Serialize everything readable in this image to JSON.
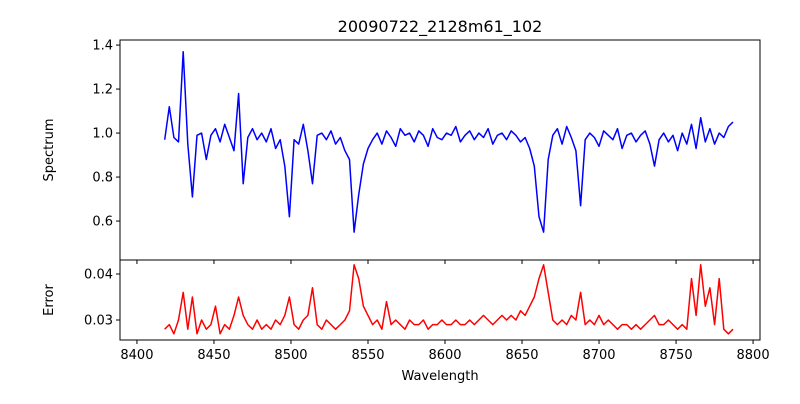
{
  "chart_data": [
    {
      "type": "line",
      "title": "20090722_2128m61_102",
      "xlabel": "",
      "ylabel": "Spectrum",
      "xlim": [
        8389,
        8804.5
      ],
      "ylim": [
        0.423,
        1.423
      ],
      "xticks": [
        8400,
        8450,
        8500,
        8550,
        8600,
        8650,
        8700,
        8750,
        8800
      ],
      "yticks": [
        "0.6",
        "0.8",
        "1.0",
        "1.2",
        "1.4"
      ],
      "grid": false,
      "color": "#0000ff",
      "x_start": 8418,
      "x_step": 3,
      "values": [
        0.97,
        1.12,
        0.98,
        0.96,
        1.37,
        0.95,
        0.71,
        0.99,
        1.0,
        0.88,
        0.99,
        1.02,
        0.96,
        1.04,
        0.98,
        0.92,
        1.18,
        0.77,
        0.98,
        1.02,
        0.97,
        1.0,
        0.96,
        1.02,
        0.93,
        0.97,
        0.85,
        0.62,
        0.97,
        0.95,
        1.04,
        0.92,
        0.77,
        0.99,
        1.0,
        0.97,
        1.01,
        0.95,
        0.98,
        0.92,
        0.88,
        0.55,
        0.72,
        0.86,
        0.93,
        0.97,
        1.0,
        0.95,
        1.01,
        0.98,
        0.94,
        1.02,
        0.99,
        1.0,
        0.96,
        1.01,
        0.99,
        0.94,
        1.02,
        0.98,
        0.97,
        1.0,
        0.99,
        1.03,
        0.96,
        0.99,
        1.01,
        0.97,
        1.0,
        0.98,
        1.02,
        0.95,
        0.99,
        1.0,
        0.97,
        1.01,
        0.99,
        0.96,
        0.98,
        0.93,
        0.85,
        0.62,
        0.55,
        0.88,
        0.99,
        1.02,
        0.95,
        1.03,
        0.98,
        0.92,
        0.67,
        0.97,
        1.0,
        0.98,
        0.94,
        1.01,
        0.99,
        0.97,
        1.02,
        0.93,
        0.99,
        1.0,
        0.96,
        0.99,
        1.01,
        0.95,
        0.85,
        0.97,
        1.0,
        0.96,
        0.99,
        0.92,
        1.0,
        0.95,
        1.04,
        0.93,
        1.07,
        0.96,
        1.02,
        0.95,
        1.0,
        0.98,
        1.03,
        1.05
      ]
    },
    {
      "type": "line",
      "title": "",
      "xlabel": "Wavelength",
      "ylabel": "Error",
      "xlim": [
        8389,
        8804.5
      ],
      "ylim": [
        0.02565,
        0.04304
      ],
      "xticks": [
        "8400",
        "8450",
        "8500",
        "8550",
        "8600",
        "8650",
        "8700",
        "8750",
        "8800"
      ],
      "yticks": [
        "0.03",
        "0.04"
      ],
      "grid": false,
      "color": "#ff0000",
      "x_start": 8418,
      "x_step": 3,
      "values": [
        0.028,
        0.029,
        0.027,
        0.03,
        0.036,
        0.028,
        0.035,
        0.027,
        0.03,
        0.028,
        0.029,
        0.033,
        0.027,
        0.029,
        0.028,
        0.031,
        0.035,
        0.031,
        0.029,
        0.028,
        0.03,
        0.028,
        0.029,
        0.028,
        0.03,
        0.029,
        0.031,
        0.035,
        0.029,
        0.028,
        0.03,
        0.031,
        0.037,
        0.029,
        0.028,
        0.03,
        0.029,
        0.028,
        0.029,
        0.03,
        0.032,
        0.042,
        0.039,
        0.033,
        0.031,
        0.029,
        0.03,
        0.028,
        0.034,
        0.029,
        0.03,
        0.029,
        0.028,
        0.03,
        0.029,
        0.029,
        0.03,
        0.028,
        0.029,
        0.029,
        0.03,
        0.029,
        0.029,
        0.03,
        0.029,
        0.029,
        0.03,
        0.029,
        0.03,
        0.031,
        0.03,
        0.029,
        0.03,
        0.031,
        0.03,
        0.031,
        0.03,
        0.032,
        0.031,
        0.033,
        0.035,
        0.039,
        0.042,
        0.036,
        0.03,
        0.029,
        0.03,
        0.029,
        0.031,
        0.03,
        0.036,
        0.029,
        0.03,
        0.029,
        0.031,
        0.029,
        0.03,
        0.029,
        0.028,
        0.029,
        0.029,
        0.028,
        0.029,
        0.028,
        0.029,
        0.03,
        0.031,
        0.029,
        0.029,
        0.03,
        0.029,
        0.028,
        0.029,
        0.028,
        0.039,
        0.031,
        0.042,
        0.033,
        0.037,
        0.029,
        0.039,
        0.028,
        0.027,
        0.028
      ]
    }
  ]
}
